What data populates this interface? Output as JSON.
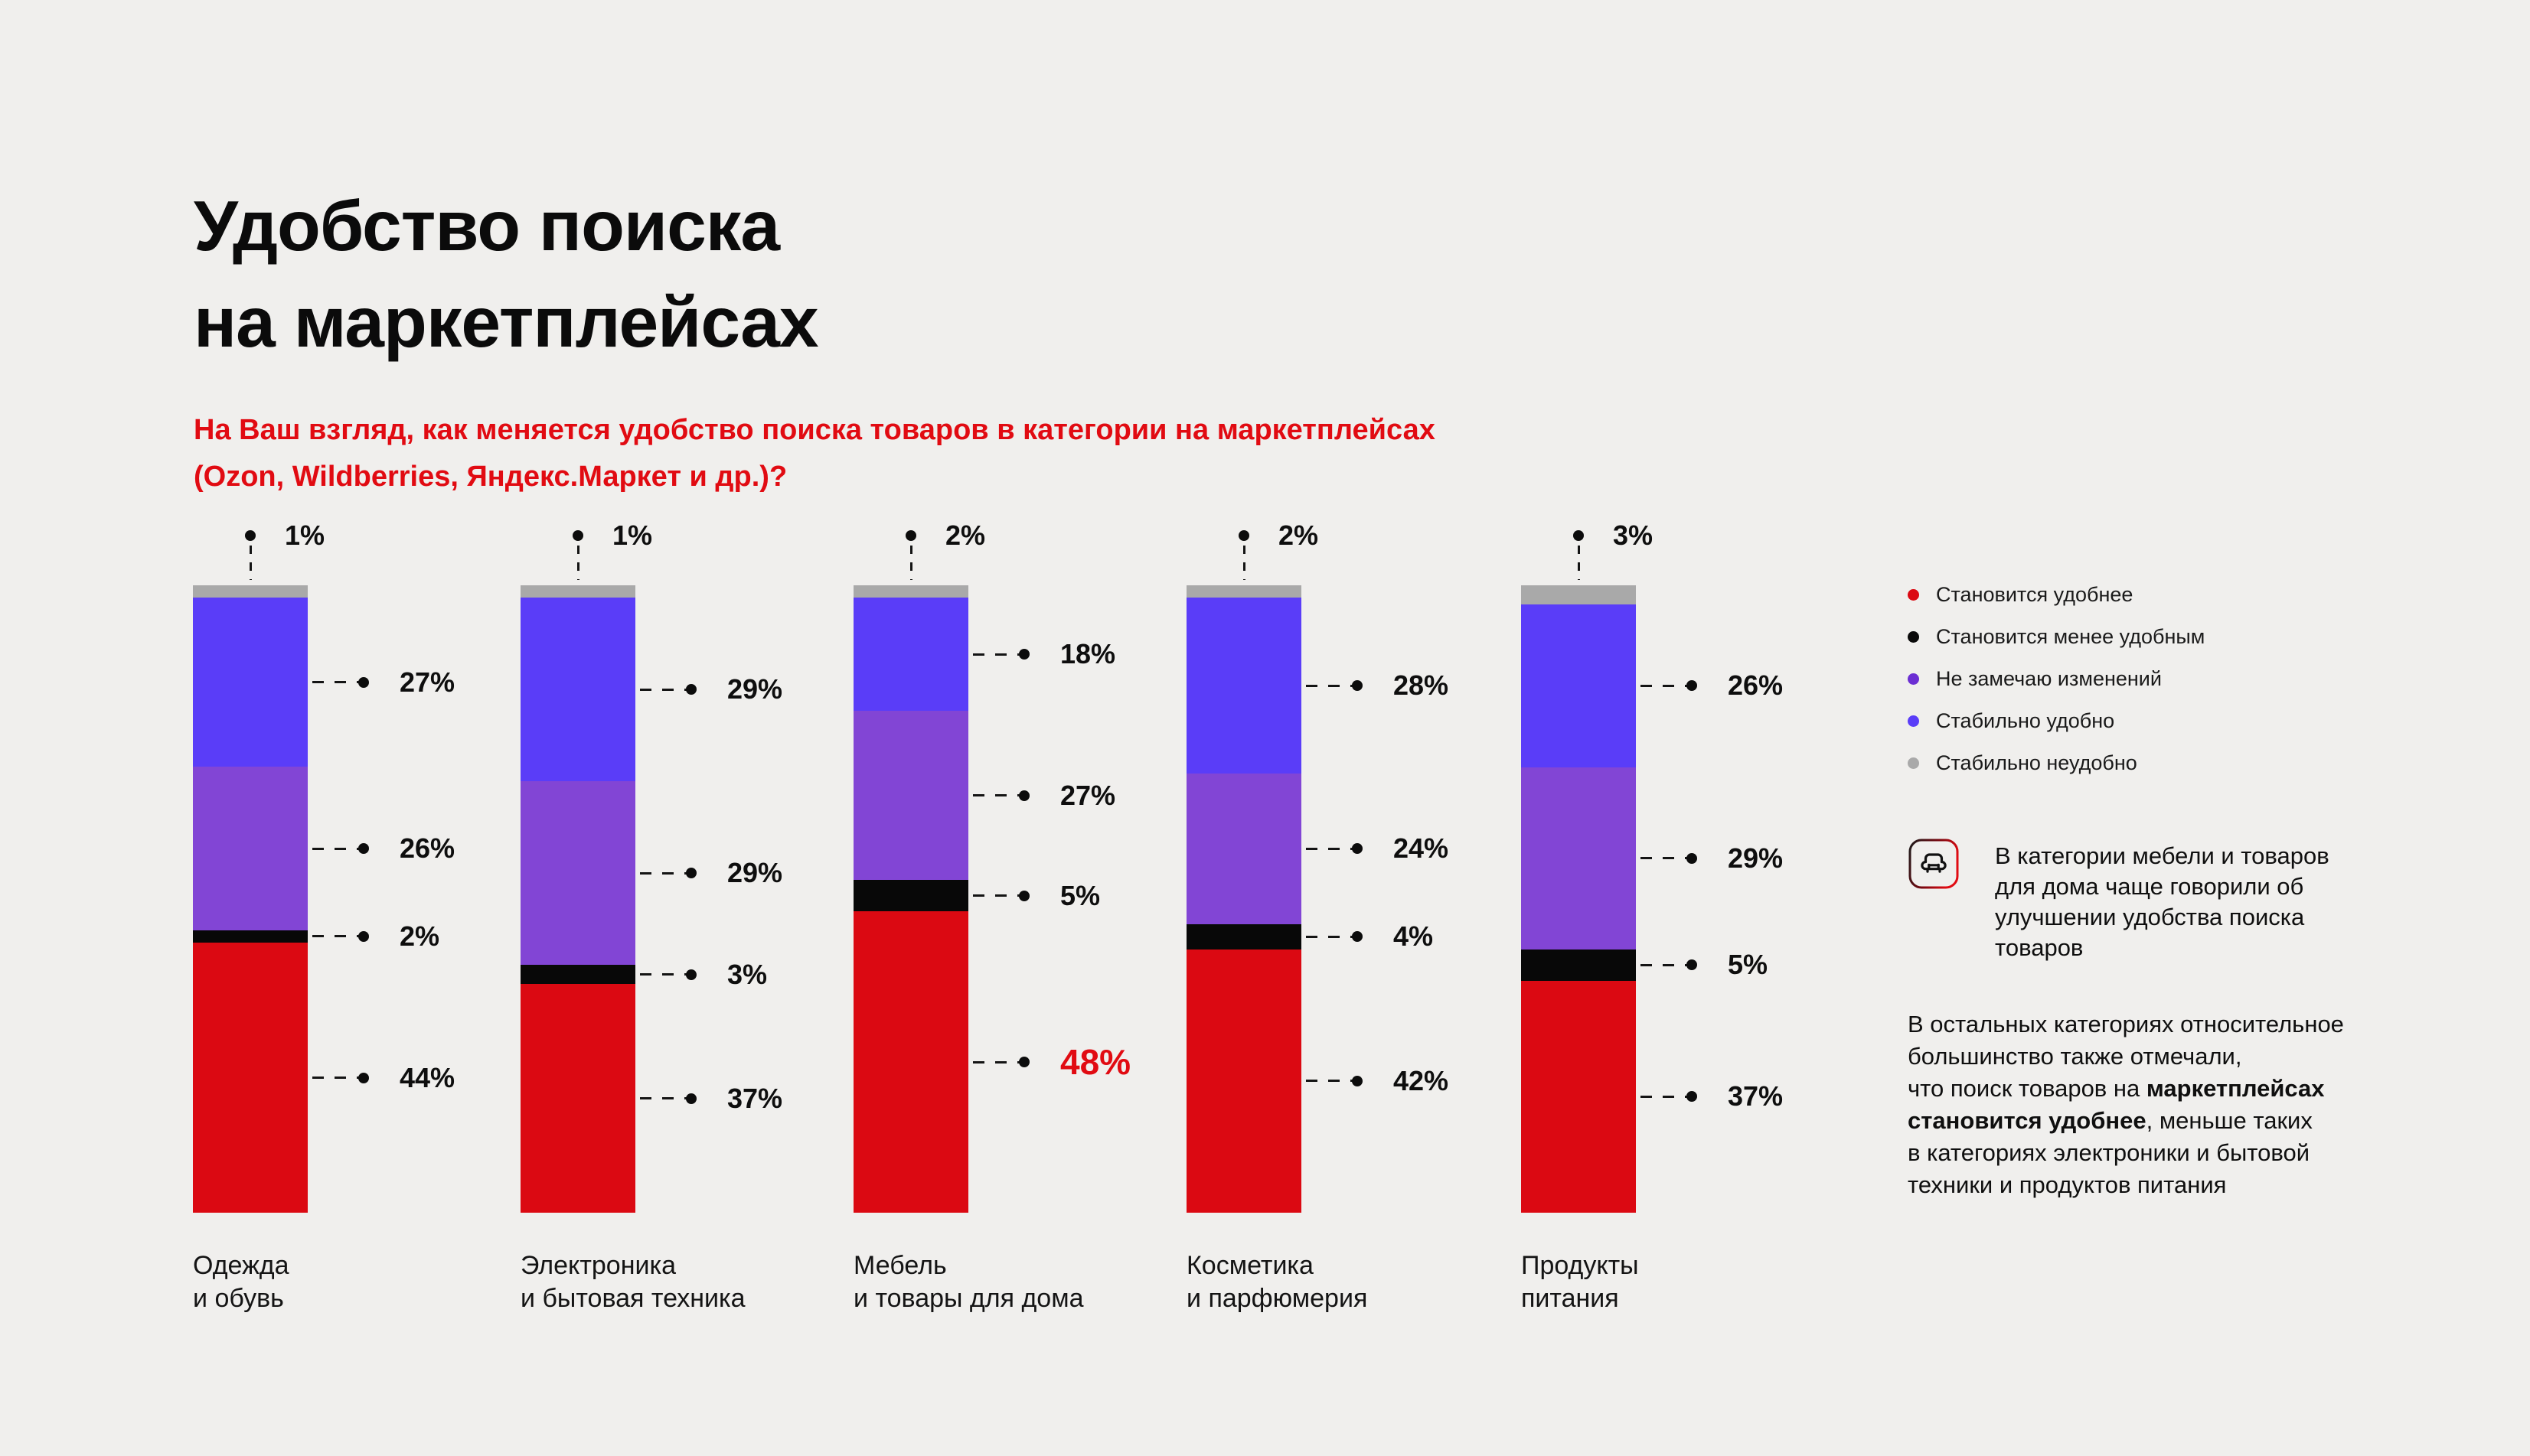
{
  "title": "Удобство поиска\nна маркетплейсах",
  "subtitle": "На Ваш взгляд, как меняется удобство поиска товаров в категории на маркетплейсах\n(Ozon, Wildberries, Яндекс.Маркет и др.)?",
  "colors": {
    "background": "#F0EFED",
    "accent_red": "#E10B12",
    "bar_red": "#DB0912",
    "bar_black": "#080808",
    "bar_purple": "#8245D5",
    "bar_blue": "#5A3DF8",
    "bar_grey": "#A9A9A9"
  },
  "legend": {
    "items": [
      {
        "label": "Становится удобнее",
        "color": "#DB0912"
      },
      {
        "label": "Становится менее удобным",
        "color": "#0A0A0A"
      },
      {
        "label": "Не замечаю изменений",
        "color": "#6B2ED3"
      },
      {
        "label": "Стабильно удобно",
        "color": "#5A3DF8"
      },
      {
        "label": "Стабильно неудобно",
        "color": "#A9A9A9"
      }
    ]
  },
  "chart_data": {
    "type": "bar",
    "stacked": true,
    "unit": "%",
    "ylim": [
      0,
      100
    ],
    "title": "Удобство поиска на маркетплейсах",
    "categories": [
      "Одежда\nи обувь",
      "Электроника\nи бытовая техника",
      "Мебель\nи товары для дома",
      "Косметика\nи парфюмерия",
      "Продукты\nпитания"
    ],
    "series": [
      {
        "key": "stably-uncomfortable",
        "name": "Стабильно неудобно",
        "color": "#A9A9A9",
        "values": [
          1,
          1,
          2,
          2,
          3
        ]
      },
      {
        "key": "stably-comfortable",
        "name": "Стабильно удобно",
        "color": "#5A3DF8",
        "values": [
          27,
          29,
          18,
          28,
          26
        ]
      },
      {
        "key": "no-change",
        "name": "Не замечаю изменений",
        "color": "#8245D5",
        "values": [
          26,
          29,
          27,
          24,
          29
        ]
      },
      {
        "key": "less-comfortable",
        "name": "Становится менее удобным",
        "color": "#080808",
        "values": [
          2,
          3,
          5,
          4,
          5
        ]
      },
      {
        "key": "more-comfortable",
        "name": "Становится удобнее",
        "color": "#DB0912",
        "values": [
          44,
          37,
          48,
          42,
          37
        ]
      }
    ],
    "highlight": {
      "category_index": 2,
      "series_key": "more-comfortable",
      "value": 48
    }
  },
  "insight_card": {
    "icon": "armchair-icon",
    "text": "В категории мебели и товаров\nдля дома чаще говорили об\nулучшении удобства поиска\nтоваров"
  },
  "note": {
    "before_bold": "В остальных категориях относительное\nбольшинство также отмечали,\nчто поиск товаров на ",
    "bold": "маркетплейсах\nстановится удобнее",
    "after_bold": ", меньше таких\nв категориях электроники и бытовой\nтехники и продуктов питания"
  }
}
